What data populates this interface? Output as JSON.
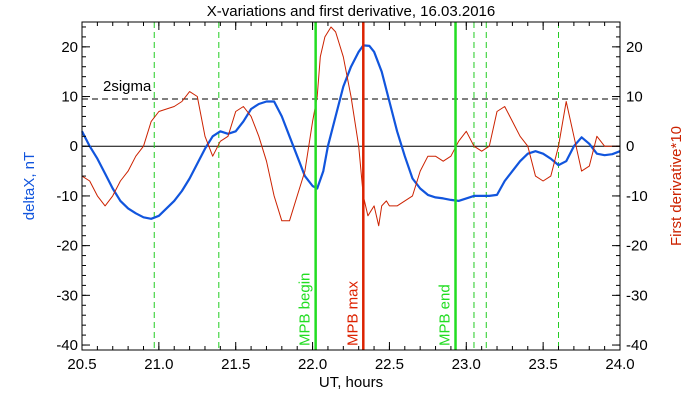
{
  "chart_data": {
    "type": "line",
    "title": "X-variations and first derivative, 16.03.2016",
    "xlabel": "UT, hours",
    "ylabel_left": "deltaX, nT",
    "ylabel_right": "First derivative*10",
    "xlim": [
      20.5,
      24.0
    ],
    "ylim": [
      -41,
      25
    ],
    "x_ticks": [
      20.5,
      21.0,
      21.5,
      22.0,
      22.5,
      23.0,
      23.5,
      24.0
    ],
    "x_tick_labels": [
      "20.5",
      "21.0",
      "21.5",
      "22.0",
      "22.5",
      "23.0",
      "23.5",
      "24.0"
    ],
    "y_ticks": [
      -40,
      -30,
      -20,
      -10,
      0,
      10,
      20
    ],
    "y_tick_labels": [
      "-40",
      "-30",
      "-20",
      "-10",
      "0",
      "10",
      "20"
    ],
    "right_y_tick_labels": [
      "-40",
      "-30",
      "-20",
      "-10",
      "0",
      "10",
      "20"
    ],
    "threshold": {
      "label": "2sigma",
      "value": 9.5
    },
    "zero_line": 0,
    "dashed_markers_x": [
      20.97,
      21.39,
      23.05,
      23.13,
      23.6
    ],
    "vertical_markers": [
      {
        "label": "MPB begin",
        "x": 22.02,
        "color": "#22dd22"
      },
      {
        "label": "MPB max",
        "x": 22.33,
        "color": "#dd2200"
      },
      {
        "label": "MPB end",
        "x": 22.93,
        "color": "#22dd22"
      }
    ],
    "series": [
      {
        "name": "deltaX, nT",
        "color": "#1155dd",
        "axis": "left",
        "x": [
          20.5,
          20.55,
          20.6,
          20.65,
          20.7,
          20.75,
          20.8,
          20.85,
          20.9,
          20.95,
          21.0,
          21.05,
          21.1,
          21.15,
          21.2,
          21.25,
          21.3,
          21.35,
          21.4,
          21.45,
          21.5,
          21.55,
          21.6,
          21.65,
          21.7,
          21.75,
          21.8,
          21.85,
          21.9,
          21.95,
          22.0,
          22.03,
          22.07,
          22.1,
          22.15,
          22.2,
          22.25,
          22.3,
          22.33,
          22.37,
          22.4,
          22.45,
          22.5,
          22.55,
          22.6,
          22.65,
          22.7,
          22.75,
          22.8,
          22.85,
          22.9,
          22.95,
          23.0,
          23.05,
          23.1,
          23.15,
          23.2,
          23.25,
          23.3,
          23.35,
          23.4,
          23.45,
          23.5,
          23.55,
          23.6,
          23.65,
          23.7,
          23.75,
          23.8,
          23.85,
          23.9,
          23.95,
          24.0
        ],
        "y": [
          3,
          0,
          -2.5,
          -5.5,
          -8.5,
          -11,
          -12.5,
          -13.5,
          -14.3,
          -14.6,
          -14,
          -12.5,
          -11,
          -9,
          -6.5,
          -3.5,
          -0.5,
          2,
          3,
          2.5,
          3,
          5,
          7.5,
          8.5,
          9,
          9,
          6,
          2,
          -2,
          -6,
          -8,
          -8.5,
          -5,
          0,
          6,
          12,
          16,
          19,
          20.3,
          20.2,
          19,
          15,
          9,
          3,
          -2,
          -6.5,
          -8.5,
          -9.8,
          -10.3,
          -10.5,
          -10.8,
          -11,
          -10.5,
          -10,
          -10,
          -10,
          -9.8,
          -7,
          -5,
          -3,
          -1.5,
          -1,
          -1.5,
          -2.5,
          -3.8,
          -3,
          0,
          1.8,
          0.5,
          -1.5,
          -1.8,
          -1.6,
          -1
        ]
      },
      {
        "name": "First derivative*10",
        "color": "#cc2200",
        "axis": "right",
        "x": [
          20.5,
          20.55,
          20.6,
          20.65,
          20.7,
          20.75,
          20.8,
          20.85,
          20.9,
          20.95,
          21.0,
          21.05,
          21.1,
          21.15,
          21.2,
          21.25,
          21.3,
          21.35,
          21.4,
          21.45,
          21.5,
          21.55,
          21.6,
          21.65,
          21.7,
          21.75,
          21.8,
          21.85,
          21.9,
          21.95,
          22.0,
          22.03,
          22.05,
          22.08,
          22.12,
          22.15,
          22.2,
          22.25,
          22.3,
          22.33,
          22.36,
          22.4,
          22.43,
          22.45,
          22.48,
          22.5,
          22.55,
          22.6,
          22.65,
          22.7,
          22.75,
          22.8,
          22.85,
          22.9,
          22.95,
          23.0,
          23.05,
          23.1,
          23.15,
          23.2,
          23.25,
          23.3,
          23.35,
          23.4,
          23.45,
          23.5,
          23.55,
          23.6,
          23.65,
          23.7,
          23.75,
          23.8,
          23.85,
          23.9,
          23.95,
          24.0
        ],
        "y": [
          -6,
          -7,
          -10,
          -12,
          -10,
          -7,
          -5,
          -2,
          0,
          5,
          7,
          7.5,
          8,
          9,
          11,
          10,
          2,
          -2,
          1,
          2,
          7,
          8,
          6,
          2,
          -3,
          -10,
          -15,
          -15,
          -10,
          -5,
          5,
          10,
          18,
          22,
          24,
          23,
          18,
          10,
          0,
          -10,
          -14,
          -12,
          -16,
          -12,
          -11,
          -12,
          -12,
          -11,
          -10,
          -5,
          -2,
          -2,
          -3,
          -2,
          1,
          3,
          0,
          -1,
          0,
          7,
          8,
          5,
          2,
          0,
          -6,
          -7,
          -6,
          0,
          9,
          2,
          -5,
          -4,
          2,
          0,
          0,
          0
        ]
      }
    ]
  }
}
